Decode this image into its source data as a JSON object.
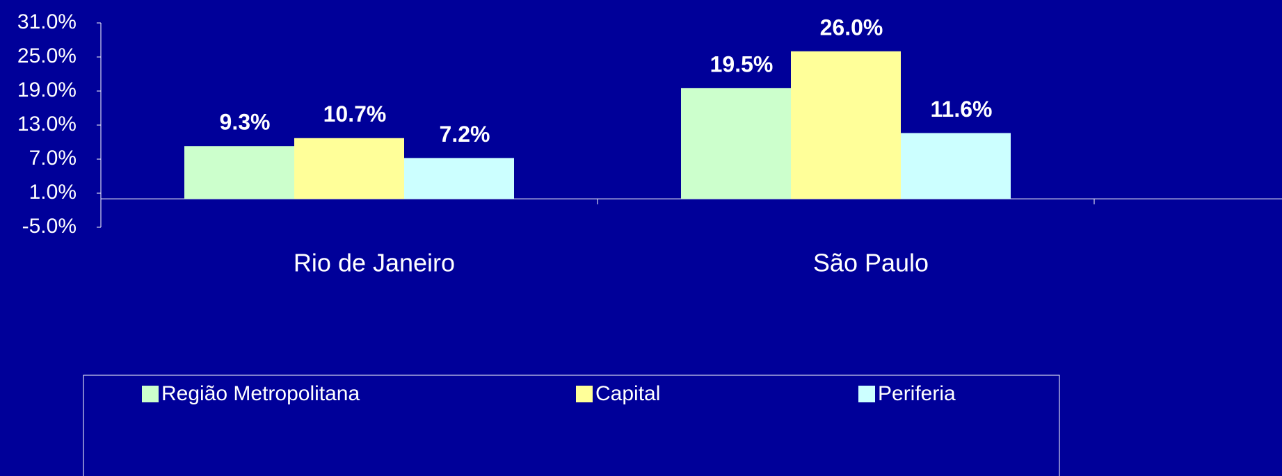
{
  "chart_data": {
    "type": "bar",
    "categories": [
      "Rio de Janeiro",
      "São Paulo"
    ],
    "series": [
      {
        "name": "Região Metropolitana",
        "color": "#ccffcc",
        "values": [
          9.3,
          19.5
        ],
        "value_labels": [
          "9.3%",
          "19.5%"
        ]
      },
      {
        "name": "Capital",
        "color": "#ffff99",
        "values": [
          10.7,
          26.0
        ],
        "value_labels": [
          "10.7%",
          "26.0%"
        ]
      },
      {
        "name": "Periferia",
        "color": "#ccffff",
        "values": [
          7.2,
          11.6
        ],
        "value_labels": [
          "7.2%",
          "11.6%"
        ]
      }
    ],
    "ylim": [
      -5,
      31
    ],
    "yticks": [
      {
        "value": -5,
        "label": "-5.0%"
      },
      {
        "value": 1,
        "label": "1.0%"
      },
      {
        "value": 7,
        "label": "7.0%"
      },
      {
        "value": 13,
        "label": "13.0%"
      },
      {
        "value": 19,
        "label": "19.0%"
      },
      {
        "value": 25,
        "label": "25.0%"
      },
      {
        "value": 31,
        "label": "31.0%"
      }
    ],
    "grid": false,
    "legend": "bottom"
  }
}
